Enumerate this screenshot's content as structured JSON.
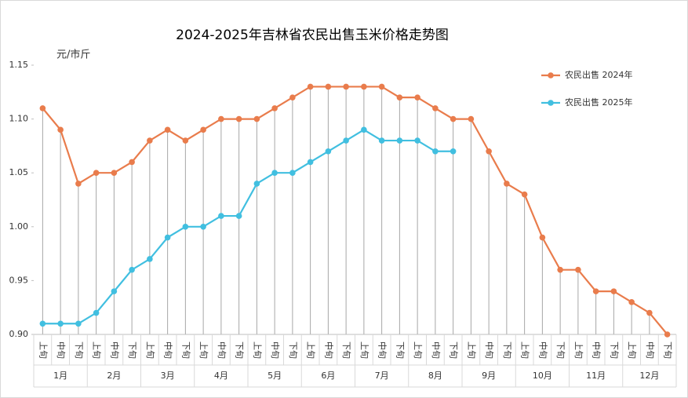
{
  "chart_data": {
    "type": "line",
    "title": "2024-2025年吉林省农民出售玉米价格走势图",
    "y_label": "元/市斤",
    "categories": [
      "上旬",
      "中旬",
      "下旬",
      "上旬",
      "中旬",
      "下旬",
      "上旬",
      "中旬",
      "下旬",
      "上旬",
      "中旬",
      "下旬",
      "上旬",
      "中旬",
      "下旬",
      "上旬",
      "中旬",
      "下旬",
      "上旬",
      "中旬",
      "下旬",
      "上旬",
      "中旬",
      "下旬",
      "上旬",
      "中旬",
      "下旬",
      "上旬",
      "中旬",
      "下旬",
      "上旬",
      "中旬",
      "下旬",
      "上旬",
      "中旬",
      "下旬"
    ],
    "groups": [
      "1月",
      "2月",
      "3月",
      "4月",
      "5月",
      "6月",
      "7月",
      "8月",
      "9月",
      "10月",
      "11月",
      "12月"
    ],
    "series": [
      {
        "name": "农民出售 2024年",
        "color": "#e97c4c",
        "values": [
          1.11,
          1.09,
          1.04,
          1.05,
          1.05,
          1.06,
          1.08,
          1.09,
          1.08,
          1.09,
          1.1,
          1.1,
          1.1,
          1.11,
          1.12,
          1.13,
          1.13,
          1.13,
          1.13,
          1.13,
          1.12,
          1.12,
          1.11,
          1.1,
          1.1,
          1.07,
          1.04,
          1.03,
          0.99,
          0.96,
          0.96,
          0.94,
          0.94,
          0.93,
          0.92,
          0.9
        ]
      },
      {
        "name": "农民出售 2025年",
        "color": "#41bfe0",
        "values": [
          0.91,
          0.91,
          0.91,
          0.92,
          0.94,
          0.96,
          0.97,
          0.99,
          1.0,
          1.0,
          1.01,
          1.01,
          1.04,
          1.05,
          1.05,
          1.06,
          1.07,
          1.08,
          1.09,
          1.08,
          1.08,
          1.08,
          1.07,
          1.07,
          null,
          null,
          null,
          null,
          null,
          null,
          null,
          null,
          null,
          null,
          null,
          null
        ]
      }
    ],
    "ylim": [
      0.9,
      1.15
    ],
    "yticks": [
      {
        "value": 0.9,
        "label": "0.90"
      },
      0.95,
      {
        "value": 1,
        "label": "1.00"
      },
      1.05,
      {
        "value": 1.1,
        "label": "1.10"
      },
      1.15
    ],
    "drop_lines": true,
    "legend": "top-right"
  }
}
